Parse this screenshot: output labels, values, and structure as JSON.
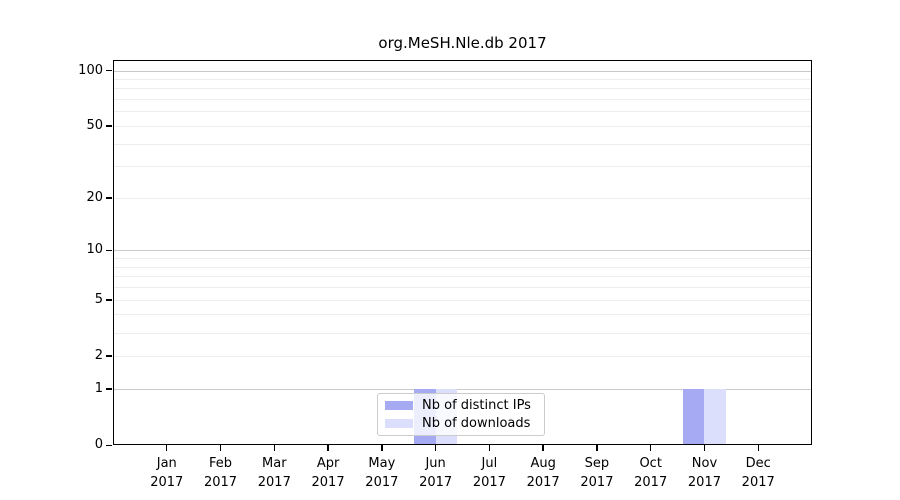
{
  "chart_data": {
    "type": "bar",
    "title": "org.MeSH.Nle.db 2017",
    "categories": [
      "Jan",
      "Feb",
      "Mar",
      "Apr",
      "May",
      "Jun",
      "Jul",
      "Aug",
      "Sep",
      "Oct",
      "Nov",
      "Dec"
    ],
    "x_year_label": "2017",
    "series": [
      {
        "name": "Nb of distinct IPs",
        "color": "#a6aaf2",
        "values": [
          0,
          0,
          0,
          0,
          0,
          1,
          0,
          0,
          0,
          0,
          1,
          0
        ]
      },
      {
        "name": "Nb of downloads",
        "color": "#dcdffb",
        "values": [
          0,
          0,
          0,
          0,
          0,
          1,
          0,
          0,
          0,
          0,
          1,
          0
        ]
      }
    ],
    "yscale": "log1p",
    "ylim": [
      0,
      114
    ],
    "y_tick_labels": [
      100,
      50,
      20,
      10,
      5,
      2,
      1,
      0
    ],
    "y_major_gridlines": [
      100,
      10,
      1
    ],
    "y_minor_gridlines": [
      90,
      80,
      70,
      60,
      50,
      40,
      30,
      20,
      9,
      8,
      7,
      6,
      5,
      4,
      3,
      2
    ],
    "grid": true,
    "legend_position": "lower center"
  },
  "colors": {
    "background": "#ffffff",
    "axis": "#000000",
    "major_grid": "#c9c9c9",
    "minor_grid": "#ededed",
    "legend_border": "#cccccc"
  }
}
